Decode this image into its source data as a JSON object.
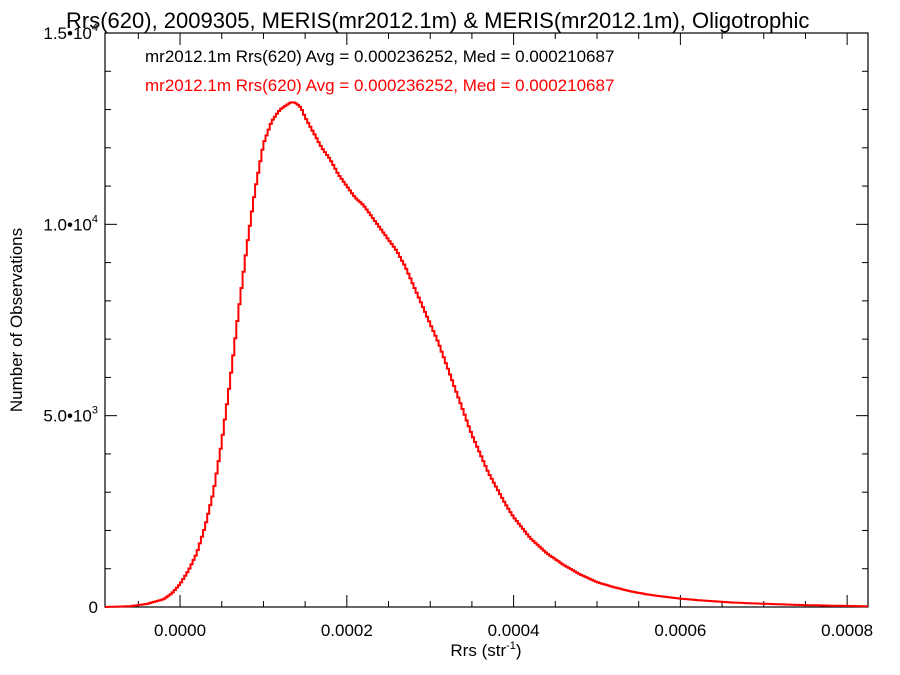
{
  "chart_data": {
    "type": "line",
    "title": "Rrs(620), 2009305, MERIS(mr2012.1m) & MERIS(mr2012.1m), Oligotrophic",
    "xlabel": "Rrs (str",
    "xlabel_sup": "-1",
    "xlabel_end": ")",
    "ylabel": "Number of Observations",
    "xlim": [
      -9e-05,
      0.000825
    ],
    "ylim": [
      0,
      15000
    ],
    "x_ticks": [
      0.0,
      0.0002,
      0.0004,
      0.0006,
      0.0008
    ],
    "x_tick_labels": [
      "0.0000",
      "0.0002",
      "0.0004",
      "0.0006",
      "0.0008"
    ],
    "y_ticks": [
      {
        "value": 0,
        "label": "0",
        "exp": ""
      },
      {
        "value": 5000,
        "label": "5.0•10",
        "exp": "3"
      },
      {
        "value": 10000,
        "label": "1.0•10",
        "exp": "4"
      },
      {
        "value": 15000,
        "label": "1.5•10",
        "exp": "4"
      }
    ],
    "legend": [
      {
        "text": "mr2012.1m Rrs(620) Avg = 0.000236252, Med = 0.000210687",
        "color": "#000000"
      },
      {
        "text": "mr2012.1m Rrs(620) Avg = 0.000236252, Med = 0.000210687",
        "color": "#ff0000"
      }
    ],
    "legend_position": "top-left",
    "series": [
      {
        "color": "#ff0000",
        "style": "histogram-step",
        "x": [
          -9e-05,
          -6e-05,
          -4e-05,
          -2e-05,
          -1e-05,
          0.0,
          1e-05,
          2e-05,
          3e-05,
          4e-05,
          5e-05,
          6e-05,
          7e-05,
          8e-05,
          9e-05,
          0.0001,
          0.00011,
          0.00012,
          0.00013,
          0.000135,
          0.00014,
          0.000145,
          0.00015,
          0.00016,
          0.00017,
          0.00018,
          0.00019,
          0.0002,
          0.00021,
          0.00022,
          0.00023,
          0.00024,
          0.00025,
          0.00026,
          0.00027,
          0.00028,
          0.00029,
          0.0003,
          0.00031,
          0.00032,
          0.00033,
          0.00034,
          0.00035,
          0.00036,
          0.00037,
          0.00038,
          0.00039,
          0.0004,
          0.00042,
          0.00044,
          0.00046,
          0.00048,
          0.0005,
          0.00052,
          0.00054,
          0.00056,
          0.00058,
          0.0006,
          0.00062,
          0.00064,
          0.00066,
          0.00068,
          0.0007,
          0.00072,
          0.00074,
          0.00076,
          0.00078,
          0.0008,
          0.000825
        ],
        "y": [
          0,
          20,
          80,
          200,
          350,
          600,
          950,
          1400,
          2100,
          3000,
          4300,
          5900,
          7700,
          9400,
          10900,
          12100,
          12700,
          13000,
          13150,
          13200,
          13150,
          13050,
          12800,
          12400,
          12000,
          11700,
          11300,
          11000,
          10700,
          10500,
          10200,
          9900,
          9600,
          9300,
          8900,
          8400,
          7900,
          7400,
          6900,
          6300,
          5700,
          5100,
          4500,
          4000,
          3500,
          3100,
          2700,
          2350,
          1800,
          1400,
          1100,
          850,
          650,
          520,
          410,
          330,
          270,
          220,
          180,
          150,
          120,
          100,
          85,
          70,
          55,
          45,
          35,
          28,
          20
        ]
      }
    ]
  }
}
